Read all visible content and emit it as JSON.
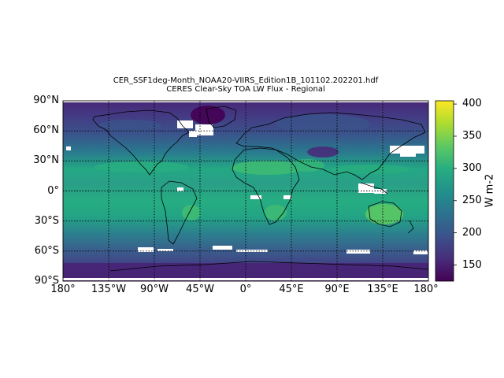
{
  "title_line1": "CER_SSF1deg-Month_NOAA20-VIIRS_Edition1B_101102.202201.hdf",
  "title_line2": "CERES Clear-Sky TOA LW Flux - Regional",
  "map": {
    "projection": "equirectangular",
    "lon_range": [
      -180,
      180
    ],
    "lat_range": [
      -90,
      90
    ],
    "gridlines": "dotted",
    "coastlines": true,
    "missing_data_color": "#ffffff"
  },
  "lat_labels": [
    "90°N",
    "60°N",
    "30°N",
    "0°",
    "30°S",
    "60°S",
    "90°S"
  ],
  "lon_labels": [
    "180°",
    "135°W",
    "90°W",
    "45°W",
    "0°",
    "45°E",
    "90°E",
    "135°E",
    "180°"
  ],
  "colorbar": {
    "colormap": "viridis",
    "min": 125,
    "max": 405,
    "label": "W m-2",
    "ticks": [
      "150",
      "200",
      "250",
      "300",
      "350",
      "400"
    ]
  }
}
